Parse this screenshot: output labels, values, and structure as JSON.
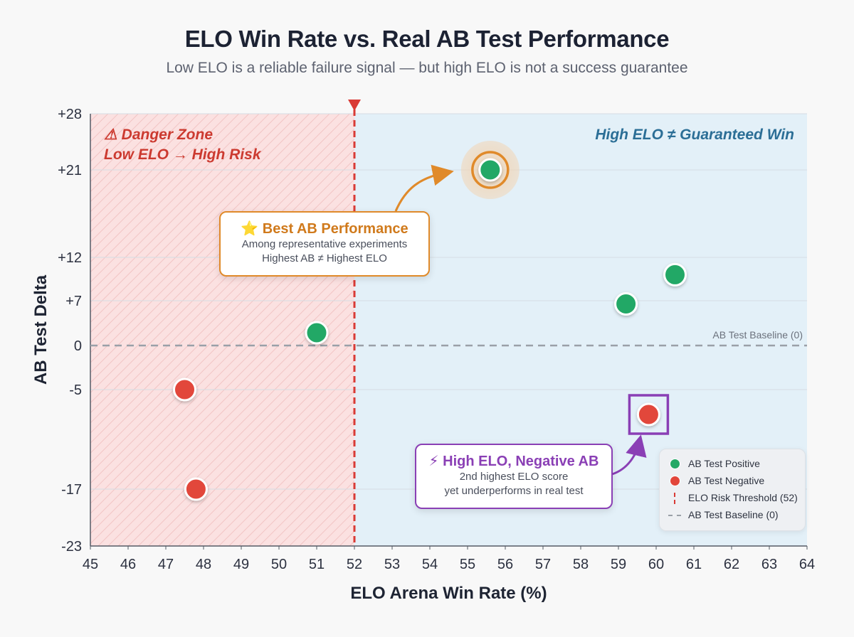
{
  "title": "ELO Win Rate vs. Real AB Test Performance",
  "subtitle": "Low ELO is a reliable failure signal — but high ELO is not a success guarantee",
  "colors": {
    "positive": "#23a866",
    "negative": "#e2463b",
    "threshold": "#d93a35",
    "best_highlight": "#e08a2a",
    "neg_highlight": "#8a3fb5",
    "danger_fill": "#fbe1e1",
    "safe_fill": "#e3f0f8",
    "danger_text": "#cc3a30",
    "safe_text": "#2b6e96"
  },
  "zones": {
    "danger_label_line1": "⚠ Danger Zone",
    "danger_label_line2": "Low ELO → High Risk",
    "safe_label": "High ELO ≠ Guaranteed Win"
  },
  "annotations": {
    "best": {
      "heading": "⭐ Best AB Performance",
      "line1": "Among representative experiments",
      "line2": "Highest AB ≠ Highest ELO",
      "point_index": 3
    },
    "negative": {
      "heading": "⚡ High ELO, Negative AB",
      "line1": "2nd highest ELO score",
      "line2": "yet underperforms in real test",
      "point_index": 6
    }
  },
  "legend": {
    "positive": "AB Test Positive",
    "negative": "AB Test Negative",
    "threshold": "ELO Risk Threshold (52)",
    "baseline": "AB Test Baseline (0)"
  },
  "chart_data": {
    "type": "scatter",
    "title": "ELO Win Rate vs. Real AB Test Performance",
    "xlabel": "ELO Arena Win Rate (%)",
    "ylabel": "AB Test Delta",
    "xlim": [
      45,
      64
    ],
    "x_ticks": [
      45,
      46,
      47,
      48,
      49,
      50,
      51,
      52,
      53,
      54,
      55,
      56,
      57,
      58,
      59,
      60,
      61,
      62,
      63,
      64
    ],
    "y_ticks": [
      {
        "value": 28,
        "label": "+28"
      },
      {
        "value": 21,
        "label": "+21"
      },
      {
        "value": 12,
        "label": "+12"
      },
      {
        "value": 7,
        "label": "+7"
      },
      {
        "value": 0,
        "label": "0"
      },
      {
        "value": -5,
        "label": "-5"
      },
      {
        "value": -17,
        "label": "-17"
      },
      {
        "value": -23,
        "label": "-23"
      }
    ],
    "threshold_x": 52,
    "baseline_y": 0,
    "baseline_label": "AB Test Baseline (0)",
    "points": [
      {
        "x": 47.5,
        "y": -5,
        "result": "negative"
      },
      {
        "x": 47.8,
        "y": -17,
        "result": "negative"
      },
      {
        "x": 51.0,
        "y": 2,
        "result": "positive"
      },
      {
        "x": 55.6,
        "y": 21,
        "result": "positive"
      },
      {
        "x": 59.2,
        "y": 6.5,
        "result": "positive"
      },
      {
        "x": 60.5,
        "y": 10,
        "result": "positive"
      },
      {
        "x": 59.8,
        "y": -8,
        "result": "negative"
      }
    ]
  }
}
